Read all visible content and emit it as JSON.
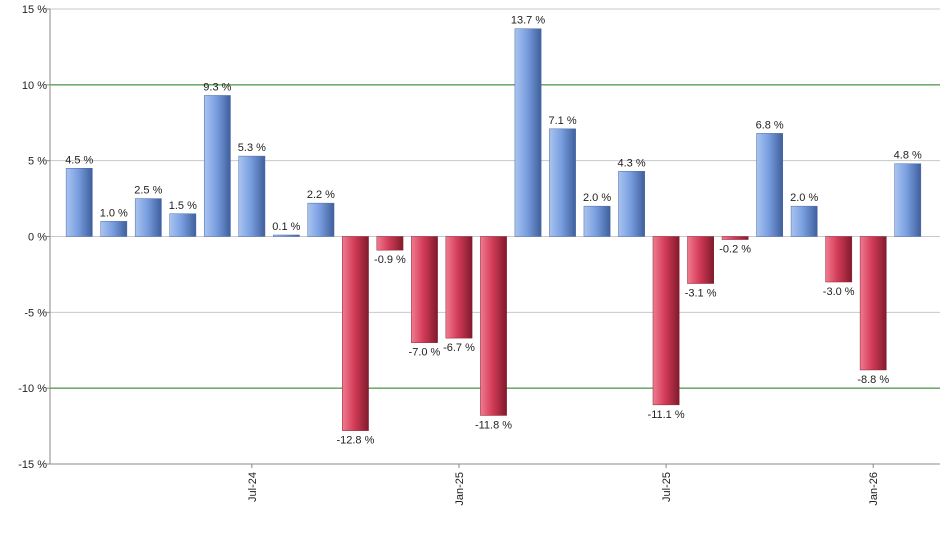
{
  "chart_data": {
    "type": "bar",
    "categories": [
      null,
      null,
      null,
      null,
      null,
      "Jul-24",
      null,
      null,
      null,
      null,
      null,
      "Jan-25",
      null,
      null,
      null,
      null,
      null,
      "Jul-25",
      null,
      null,
      null,
      null,
      null,
      "Jan-26",
      null
    ],
    "values": [
      4.5,
      1.0,
      2.5,
      1.5,
      9.3,
      5.3,
      0.1,
      2.2,
      -12.8,
      -0.9,
      -7.0,
      -6.7,
      -11.8,
      13.7,
      7.1,
      2.0,
      4.3,
      -11.1,
      -3.1,
      -0.2,
      6.8,
      2.0,
      -3.0,
      -8.8,
      4.8
    ],
    "value_labels": [
      "4.5 %",
      "1.0 %",
      "2.5 %",
      "1.5 %",
      "9.3 %",
      "5.3 %",
      "0.1 %",
      "2.2 %",
      "-12.8 %",
      "-0.9 %",
      "-7.0 %",
      "-6.7 %",
      "-11.8 %",
      "13.7 %",
      "7.1 %",
      "2.0 %",
      "4.3 %",
      "-11.1 %",
      "-3.1 %",
      "-0.2 %",
      "6.8 %",
      "2.0 %",
      "-3.0 %",
      "-8.8 %",
      "4.8 %"
    ],
    "positive_color": "#6b93d6",
    "negative_color": "#c9304c",
    "ylim": [
      -15,
      15
    ],
    "yticks": [
      {
        "value": -15,
        "label": "-15 %"
      },
      {
        "value": -10,
        "label": "-10 %"
      },
      {
        "value": -5,
        "label": "-5 %"
      },
      {
        "value": 0,
        "label": "0 %"
      },
      {
        "value": 5,
        "label": "5 %"
      },
      {
        "value": 10,
        "label": "10 %"
      },
      {
        "value": 15,
        "label": "15 %"
      }
    ],
    "grid": true,
    "grid_color": "#c8c8c8",
    "reference_lines": [
      -10,
      10
    ],
    "reference_color": "#1a7a1a"
  }
}
